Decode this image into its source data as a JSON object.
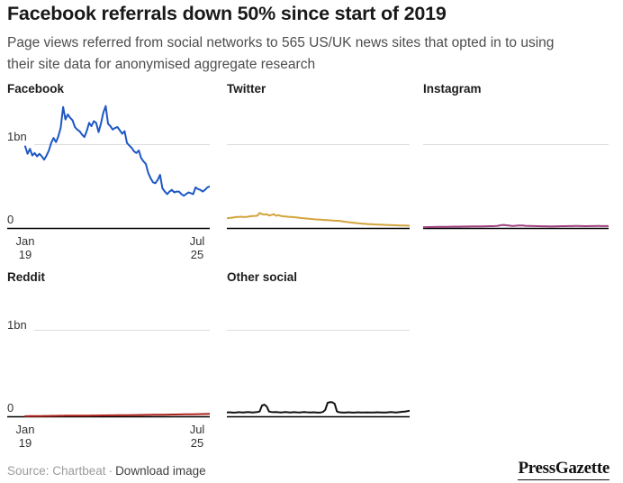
{
  "header": {
    "title": "Facebook referrals down 50% since start of 2019",
    "subtitle_line1": "Page views referred from social networks to 565 US/UK news sites that opted in to using",
    "subtitle_line2": "their site data for anonymised aggregate research"
  },
  "axis": {
    "gridline_label": "1bn",
    "baseline_label": "0",
    "x_left_line1": "Jan",
    "x_left_line2": "19",
    "x_right_line1": "Jul",
    "x_right_line2": "25"
  },
  "footer": {
    "source_label": "Source: Chartbeat",
    "separator": "·",
    "download_label": "Download image",
    "brand": "PressGazette"
  },
  "colors": {
    "gridline": "#dcdcdc",
    "axis": "#000000"
  },
  "chart_data": [
    {
      "type": "line",
      "name": "Facebook",
      "color": "#1e57c4",
      "unit": "bn page views per month",
      "x_range": [
        "Jan 19",
        "Jul 25"
      ],
      "ylim": [
        0,
        1.56
      ],
      "gridline_value": 1.0,
      "values": [
        0.98,
        0.89,
        0.95,
        0.87,
        0.9,
        0.86,
        0.89,
        0.86,
        0.82,
        0.87,
        0.93,
        1.02,
        1.08,
        1.03,
        1.1,
        1.2,
        1.45,
        1.3,
        1.36,
        1.32,
        1.29,
        1.21,
        1.18,
        1.16,
        1.12,
        1.09,
        1.16,
        1.26,
        1.22,
        1.28,
        1.26,
        1.15,
        1.25,
        1.38,
        1.46,
        1.25,
        1.22,
        1.18,
        1.2,
        1.21,
        1.17,
        1.13,
        1.16,
        1.02,
        0.99,
        0.96,
        0.92,
        0.9,
        0.93,
        0.84,
        0.8,
        0.77,
        0.66,
        0.6,
        0.55,
        0.54,
        0.58,
        0.64,
        0.48,
        0.44,
        0.41,
        0.44,
        0.46,
        0.43,
        0.44,
        0.44,
        0.41,
        0.39,
        0.41,
        0.43,
        0.42,
        0.41,
        0.49,
        0.47,
        0.46,
        0.44,
        0.46,
        0.49,
        0.5
      ]
    },
    {
      "type": "line",
      "name": "Twitter",
      "color": "#d3a33c",
      "unit": "bn page views per month",
      "x_range": [
        "Jan 19",
        "Jul 25"
      ],
      "ylim": [
        0,
        1.56
      ],
      "gridline_value": 1.0,
      "values": [
        0.12,
        0.125,
        0.128,
        0.132,
        0.135,
        0.138,
        0.14,
        0.138,
        0.135,
        0.14,
        0.145,
        0.148,
        0.15,
        0.152,
        0.185,
        0.172,
        0.165,
        0.17,
        0.155,
        0.16,
        0.17,
        0.152,
        0.158,
        0.15,
        0.145,
        0.142,
        0.14,
        0.138,
        0.136,
        0.133,
        0.13,
        0.127,
        0.124,
        0.121,
        0.118,
        0.116,
        0.113,
        0.111,
        0.108,
        0.106,
        0.104,
        0.102,
        0.1,
        0.099,
        0.097,
        0.095,
        0.093,
        0.091,
        0.09,
        0.086,
        0.082,
        0.078,
        0.074,
        0.071,
        0.068,
        0.065,
        0.062,
        0.059,
        0.057,
        0.055,
        0.052,
        0.05,
        0.049,
        0.047,
        0.046,
        0.045,
        0.044,
        0.043,
        0.042,
        0.041,
        0.04,
        0.039,
        0.038,
        0.037,
        0.036,
        0.035,
        0.034,
        0.033,
        0.032
      ]
    },
    {
      "type": "line",
      "name": "Instagram",
      "color": "#9d3f7d",
      "unit": "bn page views per month",
      "x_range": [
        "Jan 19",
        "Jul 25"
      ],
      "ylim": [
        0,
        1.56
      ],
      "gridline_value": 1.0,
      "values": [
        0.015,
        0.015,
        0.016,
        0.016,
        0.017,
        0.017,
        0.018,
        0.018,
        0.018,
        0.019,
        0.019,
        0.02,
        0.02,
        0.021,
        0.022,
        0.022,
        0.022,
        0.023,
        0.023,
        0.023,
        0.024,
        0.024,
        0.024,
        0.025,
        0.025,
        0.025,
        0.026,
        0.026,
        0.027,
        0.027,
        0.028,
        0.03,
        0.034,
        0.04,
        0.042,
        0.038,
        0.034,
        0.031,
        0.03,
        0.032,
        0.035,
        0.036,
        0.034,
        0.031,
        0.03,
        0.029,
        0.028,
        0.028,
        0.027,
        0.027,
        0.026,
        0.026,
        0.026,
        0.025,
        0.025,
        0.025,
        0.026,
        0.026,
        0.027,
        0.027,
        0.027,
        0.028,
        0.028,
        0.028,
        0.029,
        0.029,
        0.028,
        0.028,
        0.027,
        0.027,
        0.028,
        0.028,
        0.028,
        0.029,
        0.029,
        0.028,
        0.028,
        0.028,
        0.028
      ]
    },
    {
      "type": "line",
      "name": "Reddit",
      "color": "#ae231d",
      "unit": "bn page views per month",
      "x_range": [
        "Jan 19",
        "Jul 25"
      ],
      "ylim": [
        0,
        1.56
      ],
      "gridline_value": 1.0,
      "values": [
        0.006,
        0.006,
        0.007,
        0.007,
        0.007,
        0.008,
        0.008,
        0.008,
        0.009,
        0.009,
        0.009,
        0.01,
        0.01,
        0.01,
        0.011,
        0.011,
        0.011,
        0.012,
        0.012,
        0.012,
        0.012,
        0.013,
        0.013,
        0.013,
        0.013,
        0.014,
        0.014,
        0.014,
        0.015,
        0.015,
        0.015,
        0.015,
        0.016,
        0.016,
        0.016,
        0.017,
        0.017,
        0.017,
        0.017,
        0.018,
        0.018,
        0.018,
        0.019,
        0.019,
        0.019,
        0.02,
        0.02,
        0.02,
        0.021,
        0.021,
        0.021,
        0.022,
        0.022,
        0.022,
        0.023,
        0.023,
        0.023,
        0.024,
        0.024,
        0.024,
        0.025,
        0.025,
        0.026,
        0.026,
        0.026,
        0.027,
        0.027,
        0.028,
        0.028,
        0.028,
        0.029,
        0.029,
        0.03,
        0.03,
        0.031,
        0.031,
        0.032,
        0.032,
        0.033
      ]
    },
    {
      "type": "line",
      "name": "Other social",
      "color": "#111111",
      "unit": "bn page views per month",
      "x_range": [
        "Jan 19",
        "Jul 25"
      ],
      "ylim": [
        0,
        1.56
      ],
      "gridline_value": 1.0,
      "values": [
        0.05,
        0.052,
        0.05,
        0.048,
        0.05,
        0.053,
        0.051,
        0.049,
        0.052,
        0.054,
        0.052,
        0.05,
        0.052,
        0.055,
        0.06,
        0.13,
        0.14,
        0.12,
        0.06,
        0.055,
        0.053,
        0.055,
        0.052,
        0.05,
        0.052,
        0.054,
        0.052,
        0.05,
        0.052,
        0.053,
        0.051,
        0.05,
        0.052,
        0.054,
        0.052,
        0.051,
        0.05,
        0.052,
        0.05,
        0.048,
        0.05,
        0.055,
        0.08,
        0.16,
        0.17,
        0.168,
        0.15,
        0.06,
        0.052,
        0.05,
        0.048,
        0.05,
        0.052,
        0.05,
        0.048,
        0.05,
        0.052,
        0.05,
        0.049,
        0.05,
        0.051,
        0.05,
        0.049,
        0.05,
        0.052,
        0.051,
        0.05,
        0.049,
        0.05,
        0.052,
        0.054,
        0.052,
        0.05,
        0.052,
        0.055,
        0.058,
        0.06,
        0.065,
        0.07
      ]
    }
  ]
}
